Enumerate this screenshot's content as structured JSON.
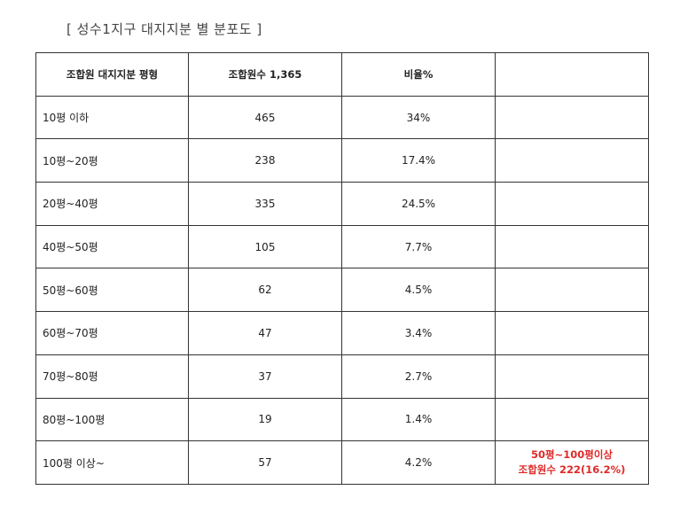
{
  "title": "[ 성수1지구 대지지분 별 분포도 ]",
  "table": {
    "headers": [
      "조합원 대지지분 평형",
      "조합원수 1,365",
      "비율%",
      ""
    ],
    "rows": [
      {
        "range": "10평 이하",
        "count": "465",
        "ratio": "34%"
      },
      {
        "range": "10평~20평",
        "count": "238",
        "ratio": "17.4%"
      },
      {
        "range": "20평~40평",
        "count": "335",
        "ratio": "24.5%"
      },
      {
        "range": "40평~50평",
        "count": "105",
        "ratio": "7.7%"
      },
      {
        "range": "50평~60평",
        "count": "62",
        "ratio": "4.5%"
      },
      {
        "range": "60평~70평",
        "count": "47",
        "ratio": "3.4%"
      },
      {
        "range": "70평~80평",
        "count": "37",
        "ratio": "2.7%"
      },
      {
        "range": "80평~100평",
        "count": "19",
        "ratio": "1.4%"
      },
      {
        "range": "100평 이상~",
        "count": "57",
        "ratio": "4.2%"
      }
    ],
    "note": {
      "line1": "50평~100평이상",
      "line2": "조합원수 222(16.2%)",
      "color": "#e02a2a"
    }
  }
}
